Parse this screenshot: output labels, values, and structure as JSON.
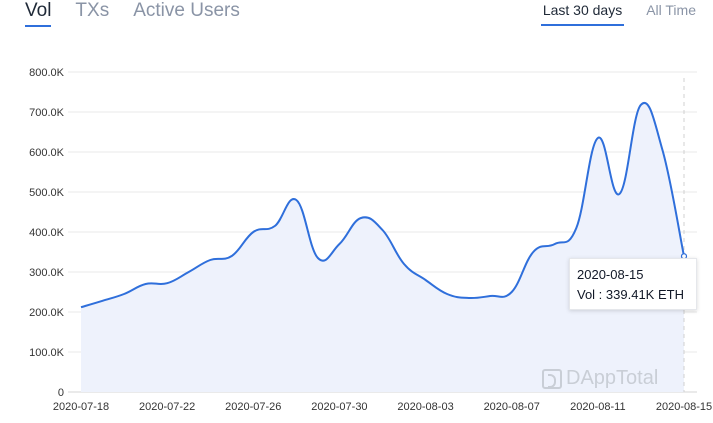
{
  "tabs": [
    {
      "label": "Vol",
      "active": true
    },
    {
      "label": "TXs",
      "active": false
    },
    {
      "label": "Active Users",
      "active": false
    }
  ],
  "range_options": [
    {
      "label": "Last 30 days",
      "active": true
    },
    {
      "label": "All Time",
      "active": false
    }
  ],
  "tooltip": {
    "date": "2020-08-15",
    "text": "Vol : 339.41K ETH"
  },
  "watermark": "DAppTotal",
  "colors": {
    "line": "#2f6fdb",
    "area": "#eef2fc",
    "grid": "#eaeaea",
    "axis_text": "#333333"
  },
  "chart_data": {
    "type": "area",
    "title": "",
    "xlabel": "",
    "ylabel": "",
    "ylim": [
      0,
      800000
    ],
    "y_ticks": [
      {
        "value": 0,
        "label": "0"
      },
      {
        "value": 100000,
        "label": "100.0K"
      },
      {
        "value": 200000,
        "label": "200.0K"
      },
      {
        "value": 300000,
        "label": "300.0K"
      },
      {
        "value": 400000,
        "label": "400.0K"
      },
      {
        "value": 500000,
        "label": "500.0K"
      },
      {
        "value": 600000,
        "label": "600.0K"
      },
      {
        "value": 700000,
        "label": "700.0K"
      },
      {
        "value": 800000,
        "label": "800.0K"
      }
    ],
    "x_ticks": [
      "2020-07-18",
      "2020-07-22",
      "2020-07-26",
      "2020-07-30",
      "2020-08-03",
      "2020-08-07",
      "2020-08-11",
      "2020-08-15"
    ],
    "x": [
      "2020-07-18",
      "2020-07-19",
      "2020-07-20",
      "2020-07-21",
      "2020-07-22",
      "2020-07-23",
      "2020-07-24",
      "2020-07-25",
      "2020-07-26",
      "2020-07-27",
      "2020-07-28",
      "2020-07-29",
      "2020-07-30",
      "2020-07-31",
      "2020-08-01",
      "2020-08-02",
      "2020-08-03",
      "2020-08-04",
      "2020-08-05",
      "2020-08-06",
      "2020-08-07",
      "2020-08-08",
      "2020-08-09",
      "2020-08-10",
      "2020-08-11",
      "2020-08-12",
      "2020-08-13",
      "2020-08-14",
      "2020-08-15"
    ],
    "series": [
      {
        "name": "Vol",
        "values": [
          212000,
          228000,
          245000,
          270000,
          272000,
          300000,
          330000,
          340000,
          400000,
          415000,
          480000,
          335000,
          370000,
          435000,
          405000,
          320000,
          280000,
          245000,
          235000,
          240000,
          250000,
          350000,
          370000,
          410000,
          635000,
          495000,
          718000,
          605000,
          339410
        ]
      }
    ],
    "highlight": {
      "x": "2020-08-15",
      "value": 339410
    },
    "grid": true,
    "legend": "none"
  }
}
